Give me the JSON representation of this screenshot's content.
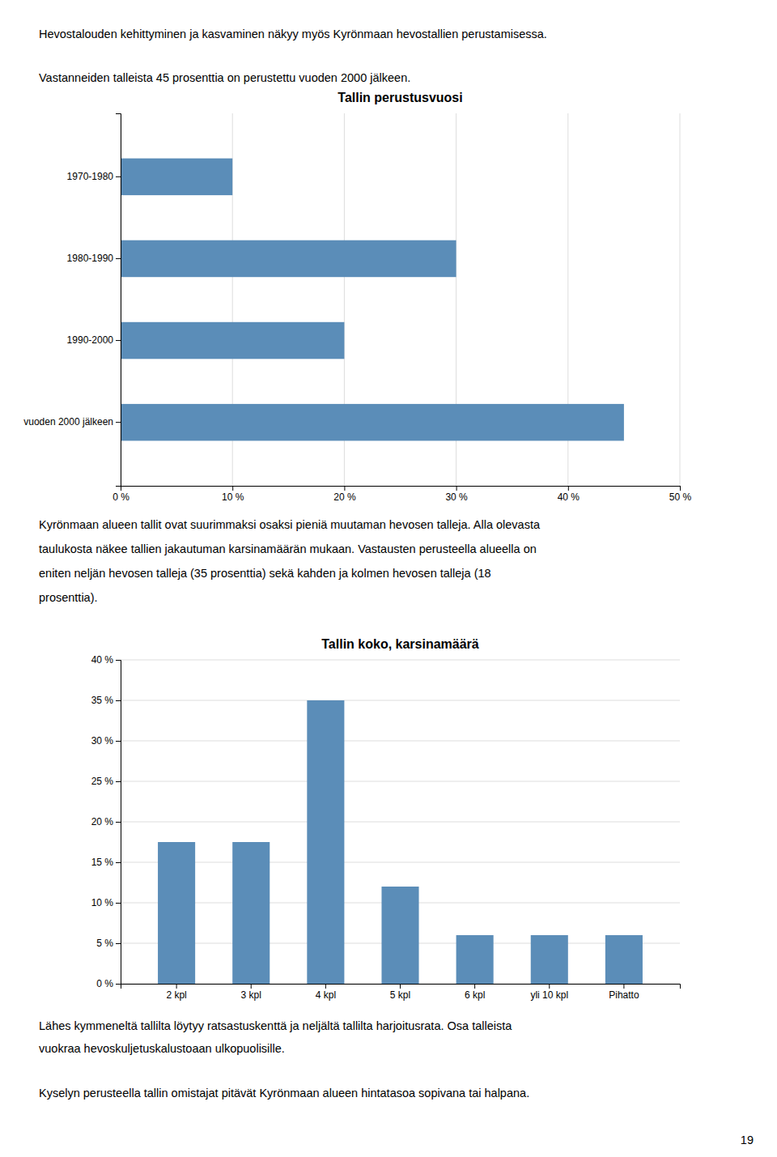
{
  "paragraphs": [
    [
      "Hevostalouden kehittyminen ja kasvaminen näkyy myös Kyrönmaan hevostallien perustamisessa."
    ],
    [
      "Vastanneiden talleista 45 prosenttia on perustettu vuoden 2000 jälkeen."
    ],
    [
      "Kyrönmaan alueen tallit ovat suurimmaksi osaksi pieniä muutaman hevosen talleja. Alla olevasta",
      "taulukosta näkee tallien jakautuman karsinamäärän mukaan. Vastausten perusteella alueella on",
      "eniten neljän hevosen talleja (35 prosenttia) sekä kahden ja kolmen hevosen talleja (18",
      "prosenttia)."
    ],
    [
      "Lähes kymmeneltä tallilta löytyy ratsastuskenttä ja neljältä tallilta harjoitusrata. Osa talleista",
      "vuokraa hevoskuljetuskalustoaan ulkopuolisille."
    ],
    [
      "Kyselyn perusteella tallin omistajat pitävät Kyrönmaan alueen hintatasoa sopivana tai halpana."
    ]
  ],
  "page_number": "19",
  "chart_data": [
    {
      "type": "bar",
      "orientation": "horizontal",
      "title": "Tallin perustusvuosi",
      "categories": [
        "1970-1980",
        "1980-1990",
        "1990-2000",
        "vuoden 2000 jälkeen"
      ],
      "values": [
        10,
        30,
        20,
        45
      ],
      "color": "#5b8db8",
      "xlim": [
        0,
        50
      ],
      "xticks": [
        {
          "value": 0,
          "label": "0 %"
        },
        {
          "value": 10,
          "label": "10 %"
        },
        {
          "value": 20,
          "label": "20 %"
        },
        {
          "value": 30,
          "label": "30 %"
        },
        {
          "value": 40,
          "label": "40 %"
        },
        {
          "value": 50,
          "label": "50 %"
        }
      ],
      "grid": true
    },
    {
      "type": "bar",
      "title": "Tallin koko, karsinamäärä",
      "categories": [
        "2 kpl",
        "3 kpl",
        "4 kpl",
        "5 kpl",
        "6 kpl",
        "yli 10 kpl",
        "Pihatto"
      ],
      "values": [
        17.5,
        17.5,
        35,
        12,
        6,
        6,
        6
      ],
      "color": "#5b8db8",
      "ylim": [
        0,
        40
      ],
      "yticks": [
        {
          "value": 0,
          "label": "0 %"
        },
        {
          "value": 5,
          "label": "5 %"
        },
        {
          "value": 10,
          "label": "10 %"
        },
        {
          "value": 15,
          "label": "15 %"
        },
        {
          "value": 20,
          "label": "20 %"
        },
        {
          "value": 25,
          "label": "25 %"
        },
        {
          "value": 30,
          "label": "30 %"
        },
        {
          "value": 35,
          "label": "35 %"
        },
        {
          "value": 40,
          "label": "40 %"
        }
      ],
      "grid": true
    }
  ]
}
